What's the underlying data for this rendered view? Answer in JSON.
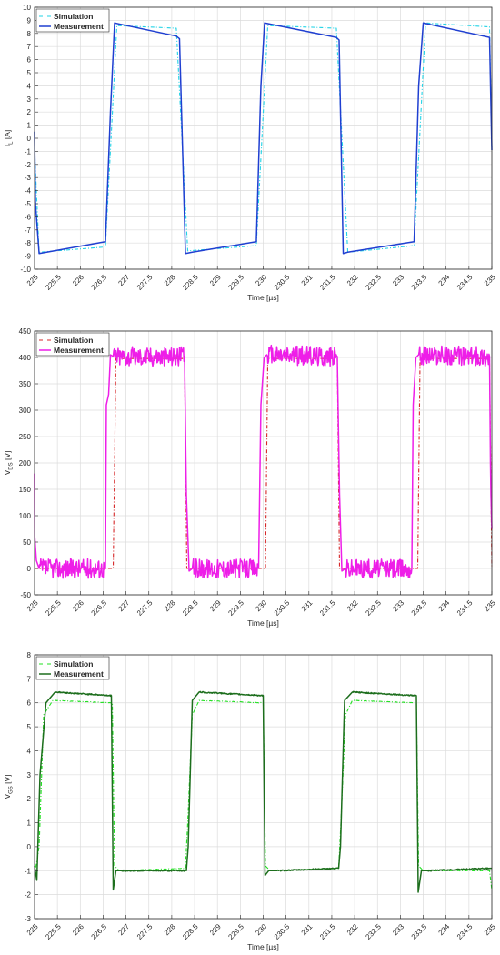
{
  "chart_data": [
    {
      "type": "line",
      "ylabel": "I",
      "ylabel_sub": "L",
      "ylabel_unit": " [A]",
      "xlabel": "Time [µs]",
      "xlim": [
        225,
        235
      ],
      "ylim": [
        -10,
        10
      ],
      "xticks": [
        225,
        225.5,
        226,
        226.5,
        227,
        227.5,
        228,
        228.5,
        229,
        229.5,
        230,
        230.5,
        231,
        231.5,
        232,
        232.5,
        233,
        233.5,
        234,
        234.5,
        235
      ],
      "yticks": [
        -10,
        -9,
        -8,
        -7,
        -6,
        -5,
        -4,
        -3,
        -2,
        -1,
        0,
        1,
        2,
        3,
        4,
        5,
        6,
        7,
        8,
        9,
        10
      ],
      "grid": true,
      "legend": "top-left",
      "series": [
        {
          "name": "Simulation",
          "color": "#22d3e6",
          "dash": "dashdot",
          "x": [
            225,
            225.1,
            226.55,
            226.8,
            228.1,
            228.35,
            229.85,
            230.1,
            231.6,
            231.85,
            233.3,
            233.55,
            234.95,
            235
          ],
          "y": [
            -0.8,
            -8.7,
            -8.3,
            8.6,
            8.4,
            -8.6,
            -8.2,
            8.6,
            8.4,
            -8.7,
            -8.2,
            8.8,
            8.5,
            -0.7
          ]
        },
        {
          "name": "Measurement",
          "color": "#1f3fd1",
          "dash": "solid",
          "x": [
            225,
            225.02,
            225.1,
            226.55,
            226.66,
            226.75,
            228.1,
            228.17,
            228.3,
            228.45,
            229.85,
            229.95,
            230.03,
            231.6,
            231.66,
            231.75,
            231.85,
            233.3,
            233.4,
            233.5,
            234.95,
            235
          ],
          "y": [
            0.5,
            -5,
            -8.8,
            -7.9,
            2,
            8.8,
            7.8,
            7.6,
            -8.8,
            -8.7,
            -7.9,
            4,
            8.8,
            7.7,
            7.5,
            -8.8,
            -8.7,
            -7.9,
            4,
            8.8,
            7.7,
            -0.9
          ]
        }
      ]
    },
    {
      "type": "line",
      "ylabel": "V",
      "ylabel_sub": "DS",
      "ylabel_unit": " [V]",
      "xlabel": "Time [µs]",
      "xlim": [
        225,
        235
      ],
      "ylim": [
        -50,
        450
      ],
      "xticks": [
        225,
        225.5,
        226,
        226.5,
        227,
        227.5,
        228,
        228.5,
        229,
        229.5,
        230,
        230.5,
        231,
        231.5,
        232,
        232.5,
        233,
        233.5,
        234,
        234.5,
        235
      ],
      "yticks": [
        -50,
        0,
        50,
        100,
        150,
        200,
        250,
        300,
        350,
        400,
        450
      ],
      "grid": true,
      "legend": "top-left",
      "series": [
        {
          "name": "Simulation",
          "color": "#d62728",
          "dash": "dashdot",
          "x": [
            225,
            225.05,
            226.72,
            226.78,
            228.28,
            228.33,
            230.05,
            230.1,
            231.62,
            231.67,
            233.38,
            233.43,
            234.95,
            235
          ],
          "y": [
            0,
            0,
            0,
            398,
            398,
            0,
            0,
            398,
            398,
            0,
            0,
            398,
            398,
            0
          ],
          "noise": 0
        },
        {
          "name": "Measurement",
          "color": "#ee1ee8",
          "dash": "solid",
          "x": [
            225,
            225.005,
            225.04,
            225.1,
            226.55,
            226.57,
            226.62,
            226.66,
            226.72,
            228.28,
            228.32,
            228.38,
            228.45,
            229.9,
            229.95,
            230.02,
            230.08,
            231.62,
            231.67,
            231.72,
            231.8,
            233.25,
            233.28,
            233.34,
            233.4,
            234.95,
            234.97,
            234.98,
            235
          ],
          "y": [
            180,
            60,
            15,
            0,
            0,
            310,
            330,
            405,
            402,
            402,
            140,
            -5,
            0,
            0,
            310,
            400,
            405,
            402,
            140,
            -5,
            0,
            0,
            310,
            400,
            405,
            402,
            200,
            140,
            75
          ],
          "noise": 1.5
        }
      ]
    },
    {
      "type": "line",
      "ylabel": "V",
      "ylabel_sub": "GS",
      "ylabel_unit": " [V]",
      "xlabel": "Time [µs]",
      "xlim": [
        225,
        235
      ],
      "ylim": [
        -3,
        8
      ],
      "xticks": [
        225,
        225.5,
        226,
        226.5,
        227,
        227.5,
        228,
        228.5,
        229,
        229.5,
        230,
        230.5,
        231,
        231.5,
        232,
        232.5,
        233,
        233.5,
        234,
        234.5,
        235
      ],
      "yticks": [
        -3,
        -2,
        -1,
        0,
        1,
        2,
        3,
        4,
        5,
        6,
        7,
        8
      ],
      "grid": true,
      "legend": "top-left",
      "series": [
        {
          "name": "Simulation",
          "color": "#22e022",
          "dash": "dashdot",
          "x": [
            225,
            225.1,
            225.2,
            225.4,
            226.7,
            226.75,
            226.85,
            228.3,
            228.35,
            228.45,
            228.6,
            230.0,
            230.05,
            230.15,
            231.65,
            231.7,
            231.8,
            231.95,
            233.35,
            233.4,
            233.5,
            234.95,
            235
          ],
          "y": [
            -1.2,
            0,
            5.5,
            6.1,
            6.0,
            -0.8,
            -1.0,
            -0.9,
            1,
            5.5,
            6.1,
            6.0,
            -0.8,
            -1.0,
            -0.9,
            1,
            5.5,
            6.1,
            6.0,
            -0.8,
            -1.0,
            -1.0,
            -1.8
          ],
          "noise": 0.04
        },
        {
          "name": "Measurement",
          "color": "#1d6e1d",
          "dash": "solid",
          "x": [
            225,
            225.05,
            225.12,
            225.25,
            225.45,
            226.68,
            226.72,
            226.78,
            226.9,
            228.32,
            228.36,
            228.45,
            228.6,
            230.0,
            230.04,
            230.12,
            230.3,
            231.65,
            231.69,
            231.78,
            231.95,
            233.35,
            233.39,
            233.46,
            233.6,
            234.95,
            235
          ],
          "y": [
            -0.8,
            -1.4,
            3,
            6.0,
            6.45,
            6.3,
            -1.8,
            -1.0,
            -1.0,
            -1.0,
            0,
            6.1,
            6.45,
            6.3,
            -1.2,
            -1.0,
            -1.0,
            -0.9,
            0,
            6.1,
            6.45,
            6.3,
            -1.9,
            -1.0,
            -1.0,
            -0.9,
            -0.9
          ],
          "noise": 0.09
        }
      ]
    }
  ]
}
